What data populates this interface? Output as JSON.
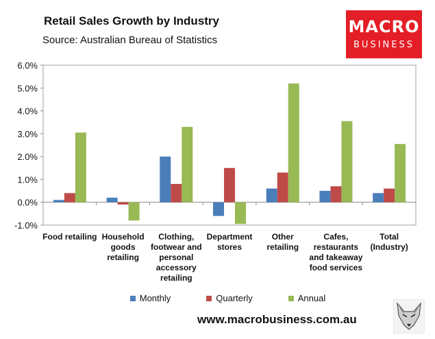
{
  "header": {
    "title": "Retail Sales Growth by Industry",
    "subtitle": "Source: Australian Bureau of Statistics"
  },
  "logo": {
    "line1": "MACRO",
    "line2": "BUSINESS",
    "color": "#e41e26"
  },
  "footer": {
    "url": "www.macrobusiness.com.au",
    "fox_icon": "fox-logo-icon"
  },
  "chart_data": {
    "type": "bar",
    "title": "Retail Sales Growth by Industry",
    "subtitle": "Source: Australian Bureau of Statistics",
    "xlabel": "",
    "ylabel": "",
    "ylim": [
      -1.0,
      6.0
    ],
    "yticks": [
      "6.0%",
      "5.0%",
      "4.0%",
      "3.0%",
      "2.0%",
      "1.0%",
      "0.0%",
      "-1.0%"
    ],
    "ytick_values": [
      6,
      5,
      4,
      3,
      2,
      1,
      0,
      -1
    ],
    "grid": false,
    "legend": "bottom",
    "categories": [
      [
        "Food retailing"
      ],
      [
        "Household",
        "goods",
        "retailing"
      ],
      [
        "Clothing,",
        "footwear and",
        "personal",
        "accessory",
        "retailing"
      ],
      [
        "Department",
        "stores"
      ],
      [
        "Other",
        "retailing"
      ],
      [
        "Cafes,",
        "restaurants",
        "and takeaway",
        "food services"
      ],
      [
        "Total",
        "(Industry)"
      ]
    ],
    "series": [
      {
        "name": "Monthly",
        "color": "#4a7ebb",
        "values": [
          0.1,
          0.2,
          2.0,
          -0.6,
          0.6,
          0.5,
          0.4
        ]
      },
      {
        "name": "Quarterly",
        "color": "#be4b48",
        "values": [
          0.4,
          -0.1,
          0.8,
          1.5,
          1.3,
          0.7,
          0.6
        ]
      },
      {
        "name": "Annual",
        "color": "#98b954",
        "values": [
          3.05,
          -0.8,
          3.3,
          -0.95,
          5.2,
          3.55,
          2.55
        ]
      }
    ]
  }
}
